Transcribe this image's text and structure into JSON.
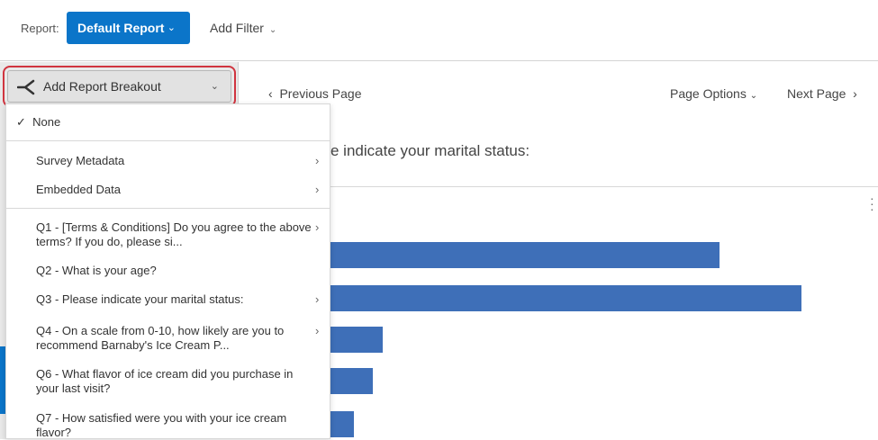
{
  "header": {
    "report_label": "Report:",
    "report_button": "Default Report",
    "add_filter": "Add Filter"
  },
  "breakout": {
    "label": "Add Report Breakout"
  },
  "pager": {
    "previous": "Previous Page",
    "options": "Page Options",
    "next": "Next Page"
  },
  "question_title": "e indicate your marital status:",
  "menu": {
    "none": "None",
    "groups": [
      {
        "label": "Survey Metadata",
        "submenu": true
      },
      {
        "label": "Embedded Data",
        "submenu": true
      }
    ],
    "questions": [
      {
        "line1": "Q1 - [Terms & Conditions] Do you agree to the above",
        "line2": "terms? If you do, please si...",
        "submenu": true
      },
      {
        "line1": "Q2 - What is your age?",
        "line2": "",
        "submenu": false
      },
      {
        "line1": "Q3 - Please indicate your marital status:",
        "line2": "",
        "submenu": true
      },
      {
        "line1": "Q4 - On a scale from 0-10, how likely are you to",
        "line2": "recommend Barnaby's Ice Cream P...",
        "submenu": true
      },
      {
        "line1": "Q6 - What flavor of ice cream did you purchase in",
        "line2": "your last visit?",
        "submenu": false
      },
      {
        "line1": "Q7 - How satisfied were you with your ice cream",
        "line2": "flavor?",
        "submenu": false
      }
    ]
  },
  "colors": {
    "accent": "#0b75c9",
    "bar": "#3e6fb8",
    "highlight": "#d0343f"
  },
  "chart_data": {
    "type": "bar",
    "orientation": "horizontal",
    "relative_values": [
      799,
      890,
      425,
      414,
      393
    ]
  }
}
